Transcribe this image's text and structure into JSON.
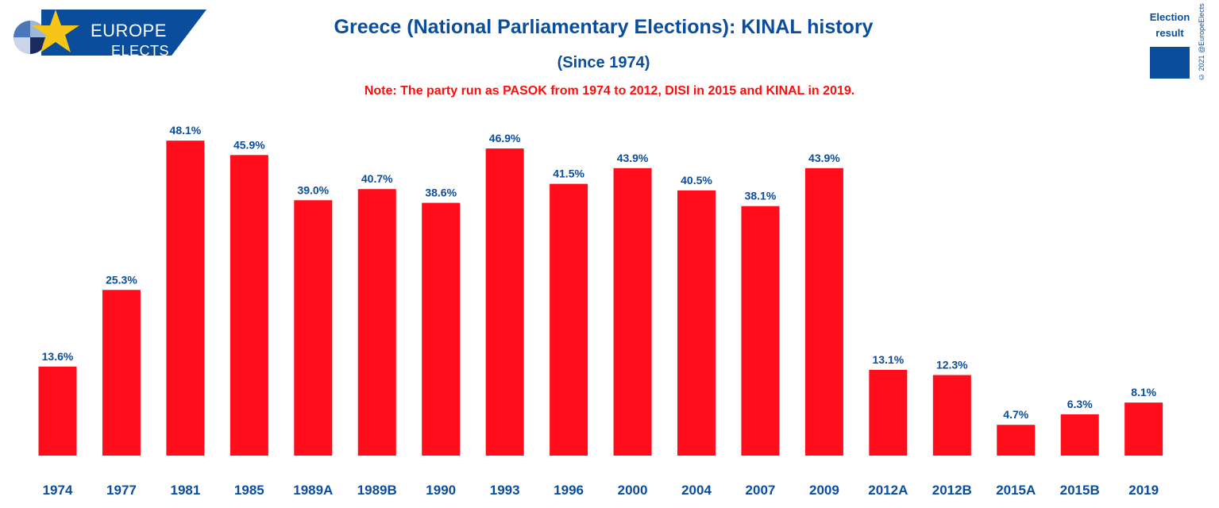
{
  "branding": {
    "line1": "EUROPE",
    "line2": "ELECTS"
  },
  "legend": {
    "label": "Election result",
    "color": "#0a4d9c"
  },
  "copyright": "© 2021 @EuropeElects",
  "colors": {
    "bar": "#ff0d1a",
    "text": "#0a4d9c",
    "note": "#ff0d0d",
    "logo_bg": "#0a4d9c",
    "star": "#f5c518"
  },
  "chart_data": {
    "type": "bar",
    "title": "Greece (National Parliamentary Elections): KINAL history",
    "subtitle": "(Since 1974)",
    "note": "Note: The party run as PASOK from 1974 to 2012, DISI in 2015 and KINAL in 2019.",
    "categories": [
      "1974",
      "1977",
      "1981",
      "1985",
      "1989A",
      "1989B",
      "1990",
      "1993",
      "1996",
      "2000",
      "2004",
      "2007",
      "2009",
      "2012A",
      "2012B",
      "2015A",
      "2015B",
      "2019"
    ],
    "values": [
      13.6,
      25.3,
      48.1,
      45.9,
      39.0,
      40.7,
      38.6,
      46.9,
      41.5,
      43.9,
      40.5,
      38.1,
      43.9,
      13.1,
      12.3,
      4.7,
      6.3,
      8.1
    ],
    "labels": [
      "13.6%",
      "25.3%",
      "48.1%",
      "45.9%",
      "39.0%",
      "40.7%",
      "38.6%",
      "46.9%",
      "41.5%",
      "43.9%",
      "40.5%",
      "38.1%",
      "43.9%",
      "13.1%",
      "12.3%",
      "4.7%",
      "6.3%",
      "8.1%"
    ],
    "series": [
      {
        "name": "Election result"
      }
    ],
    "ylim": [
      0,
      50
    ],
    "grid": false,
    "legend_position": "top-right"
  }
}
